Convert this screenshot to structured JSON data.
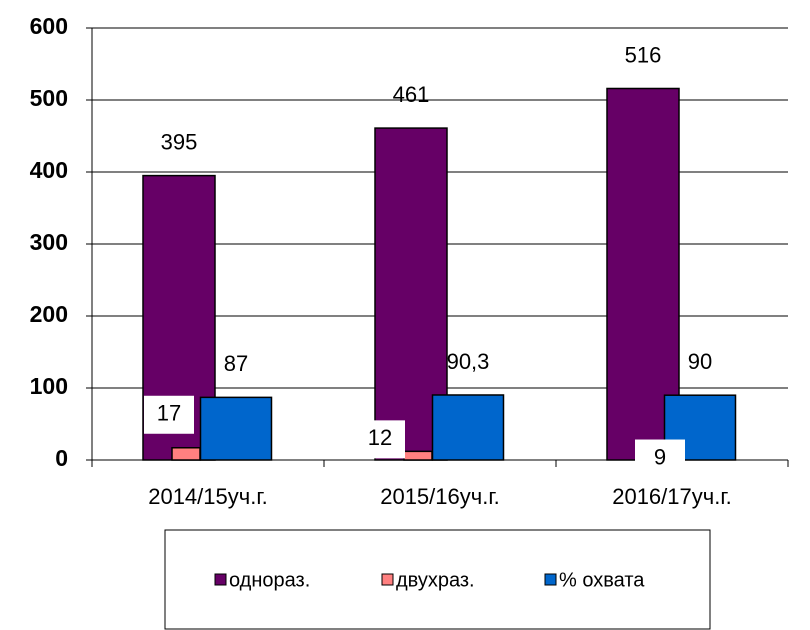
{
  "chart_data": {
    "type": "bar",
    "categories": [
      "2014/15уч.г.",
      "2015/16уч.г.",
      "2016/17уч.г."
    ],
    "series": [
      {
        "name": "однораз.",
        "color": "#660066",
        "values": [
          395,
          461,
          516
        ]
      },
      {
        "name": "двухраз.",
        "color": "#ff8080",
        "values": [
          17,
          12,
          9
        ]
      },
      {
        "name": "% охвата",
        "color": "#0066cc",
        "values": [
          87,
          90.3,
          90
        ],
        "value_labels": [
          "87",
          "90,3",
          "90"
        ]
      }
    ],
    "ylim": [
      0,
      600
    ],
    "yticks": [
      0,
      100,
      200,
      300,
      400,
      500,
      600
    ],
    "legend": "bottom"
  }
}
